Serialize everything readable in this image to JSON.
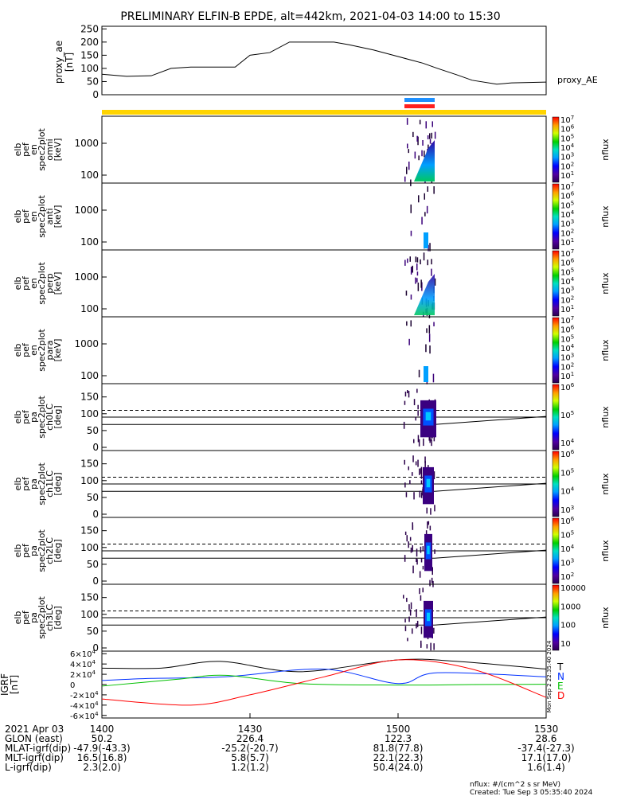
{
  "title": "PRELIMINARY ELFIN-B EPDE, alt=442km, 2021-04-03 14:00 to 15:30",
  "colors": {
    "bar_yellow": "#FFD400",
    "bar_blue": "#1E90FF",
    "bar_red": "#FF2020"
  },
  "chart_data": [
    {
      "type": "line",
      "name": "proxy_ae",
      "ylabel": [
        "proxy_ae",
        "[nT]"
      ],
      "legend": "proxy_AE",
      "ylim": [
        0,
        260
      ],
      "yticks": [
        "250",
        "200",
        "150",
        "100",
        "50",
        "0"
      ],
      "ytick_values": [
        250,
        200,
        150,
        100,
        50,
        0
      ],
      "x_minutes": [
        0,
        5,
        10,
        14,
        18,
        27,
        30,
        34,
        38,
        47,
        50,
        55,
        60,
        65,
        68,
        72,
        75,
        80,
        83,
        90
      ],
      "y_nT": [
        78,
        70,
        72,
        100,
        105,
        105,
        150,
        160,
        200,
        200,
        190,
        170,
        145,
        120,
        100,
        75,
        55,
        40,
        45,
        48
      ]
    },
    {
      "type": "heatmap",
      "name": "spec-omni",
      "ylabel": [
        "elb",
        "pef",
        "en",
        "spec2plot",
        "omni",
        "[keV]"
      ],
      "yticks": [
        "1000",
        "100"
      ],
      "colorbar_ticks": [
        "10^7",
        "10^6",
        "10^5",
        "10^4",
        "10^3",
        "10^2",
        "10^1"
      ],
      "colorbar_label": "nflux"
    },
    {
      "type": "heatmap",
      "name": "spec-anti",
      "ylabel": [
        "elb",
        "pef",
        "en",
        "spec2plot",
        "anti",
        "[keV]"
      ],
      "yticks": [
        "1000",
        "100"
      ],
      "colorbar_ticks": [
        "10^7",
        "10^6",
        "10^5",
        "10^4",
        "10^3",
        "10^2",
        "10^1"
      ],
      "colorbar_label": "nflux"
    },
    {
      "type": "heatmap",
      "name": "spec-perp",
      "ylabel": [
        "elb",
        "pef",
        "en",
        "spec2plot",
        "perp",
        "[keV]"
      ],
      "yticks": [
        "1000",
        "100"
      ],
      "colorbar_ticks": [
        "10^7",
        "10^6",
        "10^5",
        "10^4",
        "10^3",
        "10^2",
        "10^1"
      ],
      "colorbar_label": "nflux"
    },
    {
      "type": "heatmap",
      "name": "spec-para",
      "ylabel": [
        "elb",
        "pef",
        "en",
        "spec2plot",
        "para",
        "[keV]"
      ],
      "yticks": [
        "1000",
        "100"
      ],
      "colorbar_ticks": [
        "10^7",
        "10^6",
        "10^5",
        "10^4",
        "10^3",
        "10^2",
        "10^1"
      ],
      "colorbar_label": "nflux"
    },
    {
      "type": "heatmap",
      "name": "pa-ch0LC",
      "ylabel": [
        "elb",
        "pef",
        "pa",
        "spec2plot",
        "ch0LC",
        "[deg]"
      ],
      "yticks": [
        "150",
        "100",
        "50",
        "0"
      ],
      "colorbar_ticks": [
        "10^6",
        "10^5",
        "10^4"
      ],
      "colorbar_label": "nflux"
    },
    {
      "type": "heatmap",
      "name": "pa-ch1LC",
      "ylabel": [
        "elb",
        "pef",
        "pa",
        "spec2plot",
        "ch1LC",
        "[deg]"
      ],
      "yticks": [
        "150",
        "100",
        "50",
        "0"
      ],
      "colorbar_ticks": [
        "10^6",
        "10^5",
        "10^4",
        "10^3"
      ],
      "colorbar_label": "nflux"
    },
    {
      "type": "heatmap",
      "name": "pa-ch2LC",
      "ylabel": [
        "elb",
        "pef",
        "pa",
        "spec2plot",
        "ch2LC",
        "[deg]"
      ],
      "yticks": [
        "150",
        "100",
        "50",
        "0"
      ],
      "colorbar_ticks": [
        "10^6",
        "10^5",
        "10^4",
        "10^3",
        "10^2"
      ],
      "colorbar_label": "nflux"
    },
    {
      "type": "heatmap",
      "name": "pa-ch3LC",
      "ylabel": [
        "elb",
        "pef",
        "pa",
        "spec2plot",
        "ch3LC",
        "[deg]"
      ],
      "yticks": [
        "150",
        "100",
        "50",
        "0"
      ],
      "colorbar_ticks": [
        "10000",
        "1000",
        "100",
        "10"
      ],
      "colorbar_label": "nflux"
    },
    {
      "type": "line",
      "name": "igrf",
      "ylabel": [
        "IGRF",
        "[nT]"
      ],
      "yticks": [
        "6×10^4",
        "4×10^4",
        "2×10^4",
        "0",
        "-2×10^4",
        "-4×10^4",
        "-6×10^4"
      ],
      "ytick_values": [
        60000,
        40000,
        20000,
        0,
        -20000,
        -40000,
        -60000
      ],
      "ylim": [
        -65000,
        65000
      ],
      "series": [
        {
          "name": "T",
          "color": "#000000",
          "x": [
            0,
            12,
            24,
            40,
            60,
            72,
            90
          ],
          "y": [
            32000,
            32000,
            45000,
            25000,
            48000,
            45000,
            30000
          ]
        },
        {
          "name": "N",
          "color": "#0030ff",
          "x": [
            0,
            10,
            25,
            45,
            60,
            68,
            90
          ],
          "y": [
            8000,
            12000,
            15000,
            30000,
            2000,
            23000,
            15000
          ]
        },
        {
          "name": "E",
          "color": "#00c000",
          "x": [
            0,
            15,
            25,
            40,
            60,
            75,
            90
          ],
          "y": [
            -3000,
            10000,
            18000,
            2000,
            -1000,
            0,
            500
          ]
        },
        {
          "name": "D",
          "color": "#ff0000",
          "x": [
            0,
            18,
            30,
            45,
            60,
            75,
            90
          ],
          "y": [
            -28000,
            -40000,
            -20000,
            15000,
            48000,
            30000,
            -25000
          ]
        }
      ],
      "legend": [
        "T",
        "N",
        "E",
        "D"
      ]
    }
  ],
  "xaxis": {
    "rows": [
      {
        "label": "2021 Apr 03",
        "values": [
          "1400",
          "1430",
          "1500",
          "1530"
        ]
      },
      {
        "label": "GLON (east)",
        "values": [
          "50.2",
          "226.4",
          "122.3",
          "28.6"
        ]
      },
      {
        "label": "MLAT-igrf(dip)",
        "values": [
          "-47.9(-43.3)",
          "-25.2(-20.7)",
          "81.8(77.8)",
          "-37.4(-27.3)"
        ]
      },
      {
        "label": "MLT-igrf(dip)",
        "values": [
          "16.5(16.8)",
          "5.8(5.7)",
          "22.1(22.3)",
          "17.1(17.0)"
        ]
      },
      {
        "label": "L-igrf(dip)",
        "values": [
          "2.3(2.0)",
          "1.2(1.2)",
          "50.4(24.0)",
          "1.6(1.4)"
        ]
      }
    ]
  },
  "footer": {
    "units": "nflux: #/(cm^2 s sr MeV)",
    "created": "Created: Tue Sep  3 05:35:40 2024",
    "side_stamp": "Mon Sep  2 22:35:40 2024"
  }
}
